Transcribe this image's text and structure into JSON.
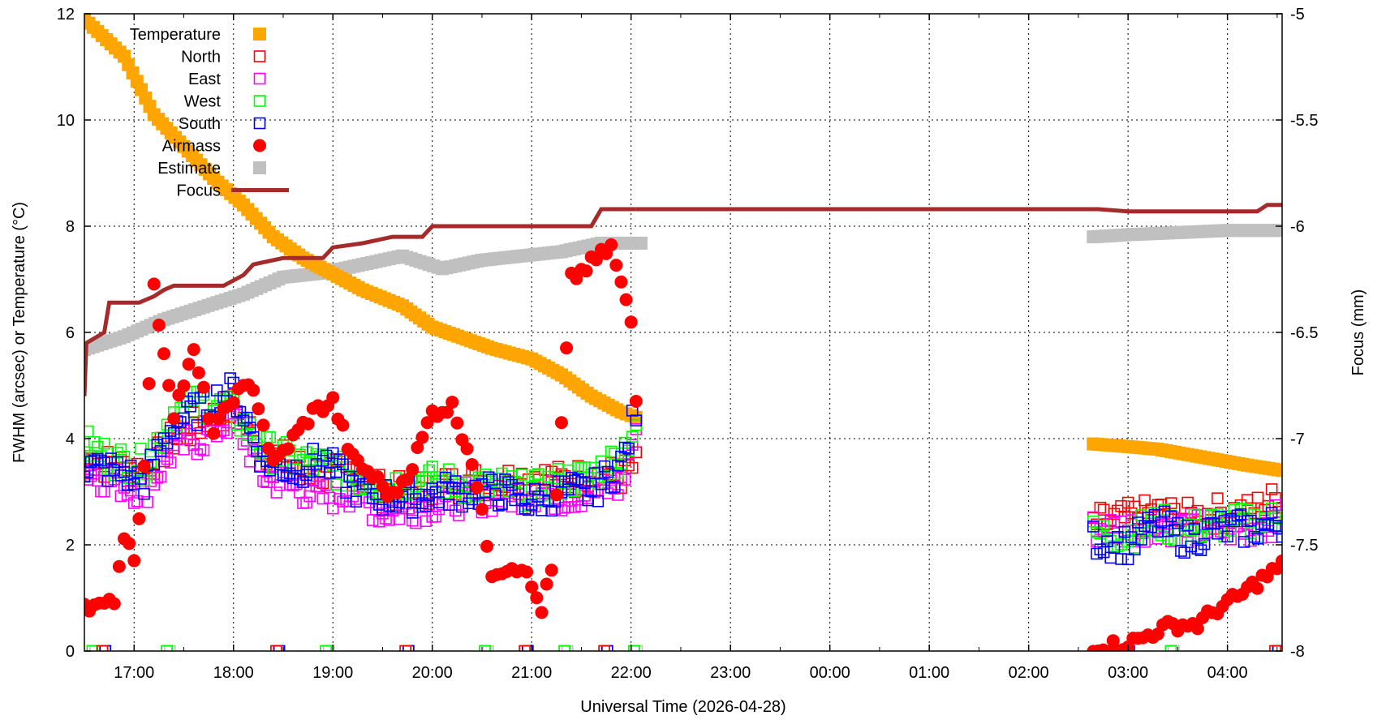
{
  "chart_data": {
    "type": "scatter",
    "title": "",
    "xlabel": "Universal Time (2026-04-28)",
    "ylabel": "FWHM (arcsec) or Temperature (°C)",
    "y2label": "Focus (mm)",
    "xlim_hours": [
      16.5,
      28.55
    ],
    "ylim": [
      0,
      12
    ],
    "y2lim": [
      -8,
      -5
    ],
    "grid": true,
    "legend_placement": "top-left",
    "x_ticks": [
      {
        "h": 17,
        "label": "17:00"
      },
      {
        "h": 18,
        "label": "18:00"
      },
      {
        "h": 19,
        "label": "19:00"
      },
      {
        "h": 20,
        "label": "20:00"
      },
      {
        "h": 21,
        "label": "21:00"
      },
      {
        "h": 22,
        "label": "22:00"
      },
      {
        "h": 23,
        "label": "23:00"
      },
      {
        "h": 24,
        "label": "00:00"
      },
      {
        "h": 25,
        "label": "01:00"
      },
      {
        "h": 26,
        "label": "02:00"
      },
      {
        "h": 27,
        "label": "03:00"
      },
      {
        "h": 28,
        "label": "04:00"
      }
    ],
    "y_ticks": [
      {
        "v": 0,
        "label": "0"
      },
      {
        "v": 2,
        "label": "2"
      },
      {
        "v": 4,
        "label": "4"
      },
      {
        "v": 6,
        "label": "6"
      },
      {
        "v": 8,
        "label": "8"
      },
      {
        "v": 10,
        "label": "10"
      },
      {
        "v": 12,
        "label": "12"
      }
    ],
    "y2_ticks": [
      {
        "v": -5,
        "label": "-5"
      },
      {
        "v": -5.5,
        "label": "-5.5"
      },
      {
        "v": -6,
        "label": "-6"
      },
      {
        "v": -6.5,
        "label": "-6.5"
      },
      {
        "v": -7,
        "label": "-7"
      },
      {
        "v": -7.5,
        "label": "-7.5"
      },
      {
        "v": -8,
        "label": "-8"
      }
    ],
    "series": [
      {
        "name": "Temperature",
        "color": "#ffa500",
        "marker": "filled-square",
        "axis": "y",
        "segments": [
          [
            [
              16.5,
              11.9
            ],
            [
              16.9,
              11.2
            ],
            [
              17.2,
              10.1
            ],
            [
              17.5,
              9.5
            ],
            [
              17.8,
              8.9
            ],
            [
              18.1,
              8.4
            ],
            [
              18.4,
              7.8
            ],
            [
              18.7,
              7.4
            ],
            [
              19.0,
              7.1
            ],
            [
              19.3,
              6.8
            ],
            [
              19.7,
              6.5
            ],
            [
              20.0,
              6.1
            ],
            [
              20.3,
              5.9
            ],
            [
              20.6,
              5.7
            ],
            [
              21.0,
              5.5
            ],
            [
              21.3,
              5.2
            ],
            [
              21.6,
              4.8
            ],
            [
              21.9,
              4.5
            ],
            [
              22.05,
              4.4
            ]
          ],
          [
            [
              26.65,
              3.9
            ],
            [
              27.0,
              3.85
            ],
            [
              27.3,
              3.8
            ],
            [
              27.6,
              3.7
            ],
            [
              27.9,
              3.6
            ],
            [
              28.2,
              3.5
            ],
            [
              28.55,
              3.4
            ]
          ]
        ]
      },
      {
        "name": "North",
        "color": "#ff0000",
        "marker": "open-square",
        "axis": "y",
        "segments": [
          [
            [
              16.5,
              3.6
            ],
            [
              16.8,
              3.5
            ],
            [
              17.1,
              3.4
            ],
            [
              17.4,
              4.0
            ],
            [
              17.7,
              4.3
            ],
            [
              18.0,
              4.6
            ],
            [
              18.3,
              3.8
            ],
            [
              18.6,
              3.5
            ],
            [
              18.9,
              3.3
            ],
            [
              19.2,
              3.4
            ],
            [
              19.5,
              3.0
            ],
            [
              19.8,
              3.0
            ],
            [
              20.1,
              3.1
            ],
            [
              20.4,
              3.2
            ],
            [
              20.7,
              3.2
            ],
            [
              21.0,
              3.3
            ],
            [
              21.3,
              3.2
            ],
            [
              21.6,
              3.3
            ],
            [
              21.9,
              3.3
            ],
            [
              22.05,
              3.5
            ]
          ],
          [
            [
              26.65,
              2.4
            ],
            [
              27.0,
              2.5
            ],
            [
              27.3,
              2.6
            ],
            [
              27.6,
              2.5
            ],
            [
              27.9,
              2.6
            ],
            [
              28.2,
              2.6
            ],
            [
              28.55,
              2.9
            ]
          ]
        ]
      },
      {
        "name": "East",
        "color": "#ff00ff",
        "marker": "open-square",
        "axis": "y",
        "segments": [
          [
            [
              16.5,
              3.4
            ],
            [
              16.8,
              3.2
            ],
            [
              17.1,
              3.0
            ],
            [
              17.4,
              3.8
            ],
            [
              17.7,
              4.0
            ],
            [
              18.0,
              4.4
            ],
            [
              18.3,
              3.3
            ],
            [
              18.6,
              3.1
            ],
            [
              18.9,
              2.9
            ],
            [
              19.2,
              3.0
            ],
            [
              19.5,
              2.6
            ],
            [
              19.8,
              2.7
            ],
            [
              20.1,
              2.8
            ],
            [
              20.4,
              2.9
            ],
            [
              20.7,
              2.9
            ],
            [
              21.0,
              3.0
            ],
            [
              21.3,
              2.9
            ],
            [
              21.6,
              3.0
            ],
            [
              21.9,
              3.1
            ],
            [
              22.05,
              4.2
            ]
          ],
          [
            [
              26.65,
              2.3
            ],
            [
              27.0,
              2.3
            ],
            [
              27.3,
              2.4
            ],
            [
              27.6,
              2.3
            ],
            [
              27.9,
              2.3
            ],
            [
              28.2,
              2.3
            ],
            [
              28.55,
              2.5
            ]
          ]
        ]
      },
      {
        "name": "West",
        "color": "#00ff00",
        "marker": "open-square",
        "axis": "y",
        "segments": [
          [
            [
              16.5,
              3.9
            ],
            [
              16.8,
              3.6
            ],
            [
              17.1,
              3.5
            ],
            [
              17.4,
              4.5
            ],
            [
              17.7,
              4.7
            ],
            [
              18.0,
              4.5
            ],
            [
              18.3,
              3.8
            ],
            [
              18.6,
              3.6
            ],
            [
              18.9,
              3.5
            ],
            [
              19.2,
              3.3
            ],
            [
              19.5,
              3.1
            ],
            [
              19.8,
              3.2
            ],
            [
              20.1,
              3.2
            ],
            [
              20.4,
              3.1
            ],
            [
              20.7,
              3.1
            ],
            [
              21.0,
              3.0
            ],
            [
              21.3,
              3.2
            ],
            [
              21.6,
              3.3
            ],
            [
              21.9,
              3.7
            ],
            [
              22.05,
              4.3
            ]
          ],
          [
            [
              26.65,
              2.2
            ],
            [
              27.0,
              2.2
            ],
            [
              27.3,
              2.4
            ],
            [
              27.6,
              2.3
            ],
            [
              27.9,
              2.4
            ],
            [
              28.2,
              2.4
            ],
            [
              28.55,
              2.5
            ]
          ]
        ]
      },
      {
        "name": "South",
        "color": "#0000ff",
        "marker": "open-square",
        "axis": "y",
        "segments": [
          [
            [
              16.5,
              3.5
            ],
            [
              16.8,
              3.4
            ],
            [
              17.1,
              3.2
            ],
            [
              17.4,
              4.3
            ],
            [
              17.7,
              4.6
            ],
            [
              18.0,
              4.9
            ],
            [
              18.3,
              3.6
            ],
            [
              18.6,
              3.4
            ],
            [
              18.9,
              3.6
            ],
            [
              19.2,
              3.1
            ],
            [
              19.5,
              2.9
            ],
            [
              19.8,
              2.9
            ],
            [
              20.1,
              3.0
            ],
            [
              20.4,
              3.0
            ],
            [
              20.7,
              3.0
            ],
            [
              21.0,
              2.8
            ],
            [
              21.3,
              3.0
            ],
            [
              21.6,
              3.0
            ],
            [
              21.9,
              3.5
            ],
            [
              22.05,
              4.5
            ]
          ],
          [
            [
              26.65,
              2.1
            ],
            [
              27.0,
              2.0
            ],
            [
              27.3,
              2.4
            ],
            [
              27.6,
              2.1
            ],
            [
              27.9,
              2.3
            ],
            [
              28.2,
              2.3
            ],
            [
              28.55,
              2.4
            ]
          ]
        ]
      },
      {
        "name": "Airmass",
        "color": "#ff0000",
        "marker": "filled-circle",
        "axis": "y",
        "segments": [
          [
            [
              16.5,
              0.9
            ],
            [
              16.7,
              0.8
            ],
            [
              16.8,
              1.0
            ],
            [
              16.9,
              2.2
            ],
            [
              17.0,
              1.8
            ],
            [
              17.1,
              3.4
            ],
            [
              17.2,
              6.8
            ],
            [
              17.4,
              4.5
            ],
            [
              17.6,
              5.6
            ],
            [
              17.8,
              4.1
            ],
            [
              18.0,
              4.8
            ],
            [
              18.2,
              5.0
            ],
            [
              18.4,
              3.5
            ],
            [
              18.6,
              4.0
            ],
            [
              18.8,
              4.5
            ],
            [
              19.0,
              4.7
            ],
            [
              19.2,
              3.6
            ],
            [
              19.4,
              3.3
            ],
            [
              19.6,
              2.9
            ],
            [
              19.8,
              3.5
            ],
            [
              20.0,
              4.5
            ],
            [
              20.2,
              4.6
            ],
            [
              20.4,
              3.6
            ],
            [
              20.6,
              1.5
            ],
            [
              20.8,
              1.6
            ],
            [
              20.9,
              1.6
            ],
            [
              21.0,
              1.2
            ],
            [
              21.1,
              0.8
            ],
            [
              21.2,
              1.5
            ],
            [
              21.4,
              7.0
            ],
            [
              21.6,
              7.3
            ],
            [
              21.8,
              7.6
            ],
            [
              21.9,
              6.9
            ],
            [
              22.0,
              6.2
            ],
            [
              22.05,
              4.7
            ]
          ],
          [
            [
              26.65,
              0.1
            ],
            [
              26.9,
              0.1
            ],
            [
              27.1,
              0.2
            ],
            [
              27.3,
              0.4
            ],
            [
              27.5,
              0.5
            ],
            [
              27.7,
              0.5
            ],
            [
              27.9,
              0.8
            ],
            [
              28.1,
              1.0
            ],
            [
              28.3,
              1.3
            ],
            [
              28.55,
              1.6
            ]
          ]
        ]
      },
      {
        "name": "Estimate",
        "color": "#c0c0c0",
        "marker": "filled-square",
        "axis": "y2",
        "segments": [
          [
            [
              16.5,
              -6.58
            ],
            [
              16.9,
              -6.52
            ],
            [
              17.3,
              -6.44
            ],
            [
              17.7,
              -6.38
            ],
            [
              18.1,
              -6.32
            ],
            [
              18.5,
              -6.24
            ],
            [
              18.9,
              -6.22
            ],
            [
              19.3,
              -6.18
            ],
            [
              19.7,
              -6.14
            ],
            [
              20.1,
              -6.2
            ],
            [
              20.5,
              -6.16
            ],
            [
              20.9,
              -6.14
            ],
            [
              21.3,
              -6.12
            ],
            [
              21.7,
              -6.08
            ],
            [
              22.1,
              -6.08
            ]
          ],
          [
            [
              26.65,
              -6.05
            ],
            [
              27.0,
              -6.04
            ],
            [
              27.5,
              -6.03
            ],
            [
              28.0,
              -6.02
            ],
            [
              28.55,
              -6.02
            ]
          ]
        ]
      },
      {
        "name": "Focus",
        "color": "#a52a2a",
        "marker": "line",
        "axis": "y2",
        "segments": [
          [
            [
              16.5,
              -6.8
            ],
            [
              16.52,
              -6.55
            ],
            [
              16.7,
              -6.5
            ],
            [
              16.75,
              -6.36
            ],
            [
              17.05,
              -6.36
            ],
            [
              17.2,
              -6.33
            ],
            [
              17.3,
              -6.3
            ],
            [
              17.4,
              -6.28
            ],
            [
              17.9,
              -6.28
            ],
            [
              18.1,
              -6.23
            ],
            [
              18.2,
              -6.18
            ],
            [
              18.5,
              -6.15
            ],
            [
              18.9,
              -6.15
            ],
            [
              19.0,
              -6.1
            ],
            [
              19.3,
              -6.08
            ],
            [
              19.6,
              -6.05
            ],
            [
              19.9,
              -6.05
            ],
            [
              20.0,
              -6.0
            ],
            [
              20.5,
              -6.0
            ],
            [
              21.0,
              -6.0
            ],
            [
              21.6,
              -6.0
            ],
            [
              21.7,
              -5.92
            ],
            [
              22.05,
              -5.92
            ]
          ],
          [
            [
              22.05,
              -5.92
            ],
            [
              26.5,
              -5.92
            ],
            [
              26.7,
              -5.92
            ],
            [
              27.0,
              -5.93
            ],
            [
              27.4,
              -5.93
            ],
            [
              27.8,
              -5.93
            ],
            [
              28.3,
              -5.93
            ],
            [
              28.4,
              -5.9
            ],
            [
              28.55,
              -5.9
            ]
          ]
        ]
      }
    ]
  }
}
